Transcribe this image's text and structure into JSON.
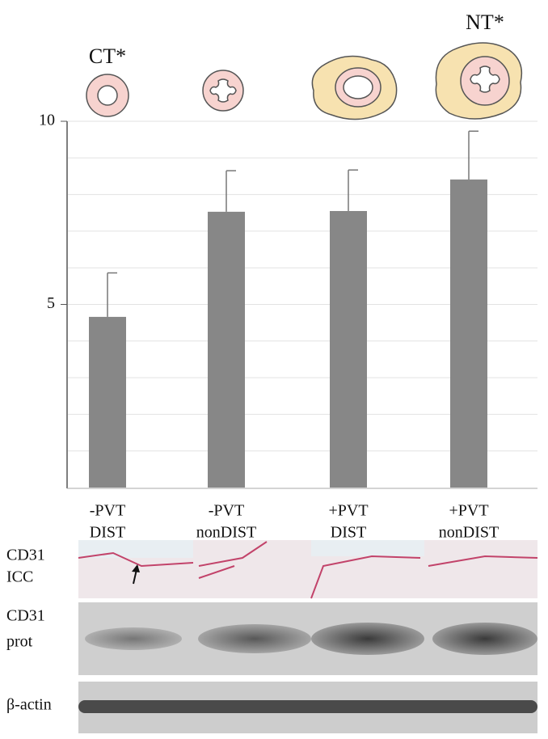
{
  "chart_data": {
    "type": "bar",
    "annotations": [
      "CT*",
      "NT*"
    ],
    "categories": [
      [
        "-PVT",
        "DIST"
      ],
      [
        "-PVT",
        "nonDIST"
      ],
      [
        "+PVT",
        "DIST"
      ],
      [
        "+PVT",
        "nonDIST"
      ]
    ],
    "values": [
      4.66,
      7.53,
      7.55,
      8.41
    ],
    "errors": [
      1.2,
      1.12,
      1.12,
      1.32
    ],
    "color": "#878787",
    "ylim": [
      0,
      10
    ],
    "yticks": [
      5,
      10
    ],
    "minor_yticks": [
      1,
      2,
      3,
      4,
      6,
      7,
      8,
      9
    ],
    "grid": true
  },
  "blot_labels": [
    [
      "CD31",
      "ICC"
    ],
    [
      "CD31",
      "prot"
    ],
    [
      "β-actin"
    ]
  ]
}
